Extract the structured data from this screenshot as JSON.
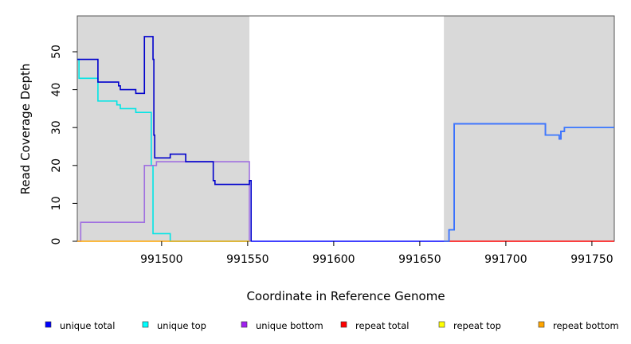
{
  "chart_data": {
    "type": "line",
    "step": true,
    "title": "",
    "xlabel": "Coordinate in Reference Genome",
    "ylabel": "Read Coverage Depth",
    "xlim": [
      991451,
      991763
    ],
    "ylim": [
      0,
      57
    ],
    "x_ticks": [
      991500,
      991550,
      991600,
      991650,
      991700,
      991750
    ],
    "x_tick_labels": [
      "991500",
      "991550",
      "991600",
      "991650",
      "991700",
      "991750"
    ],
    "y_ticks": [
      0,
      10,
      20,
      30,
      40,
      50
    ],
    "y_tick_labels": [
      "0",
      "10",
      "20",
      "30",
      "40",
      "50"
    ],
    "shaded_regions": [
      [
        991451,
        991551
      ],
      [
        991664,
        991763
      ]
    ],
    "shade_color": "#d9d9d9",
    "legend_position": "bottom",
    "legend": [
      {
        "label": "unique total",
        "color": "#0000ff"
      },
      {
        "label": "unique top",
        "color": "#00ffff"
      },
      {
        "label": "unique bottom",
        "color": "#a020f0"
      },
      {
        "label": "repeat total",
        "color": "#ff0000"
      },
      {
        "label": "repeat top",
        "color": "#ffff00"
      },
      {
        "label": "repeat bottom",
        "color": "#ffa500"
      }
    ],
    "series": [
      {
        "name": "unique top",
        "color": "#00e5e5",
        "x": [
          991451,
          991452,
          991463,
          991474,
          991476,
          991485,
          991494,
          991495,
          991505,
          991551
        ],
        "y": [
          48,
          43,
          37,
          36,
          35,
          34,
          20,
          2,
          0,
          0
        ]
      },
      {
        "name": "unique bottom",
        "color": "#a070e0",
        "x": [
          991451,
          991452,
          991453,
          991490,
          991497,
          991504,
          991551
        ],
        "y": [
          0,
          0,
          5,
          20,
          21,
          21,
          0
        ]
      },
      {
        "name": "repeat bottom",
        "color": "#ffa500",
        "x": [
          991451,
          991551
        ],
        "y": [
          0,
          0
        ]
      },
      {
        "name": "repeat total",
        "color": "#ff0000",
        "x": [
          991664,
          991763
        ],
        "y": [
          0,
          0
        ]
      },
      {
        "name": "unique total",
        "color": "#0000cc",
        "x": [
          991451,
          991463,
          991475,
          991476,
          991485,
          991490,
          991495,
          991495.5,
          991496,
          991505,
          991514,
          991530,
          991531,
          991551,
          991552
        ],
        "y": [
          48,
          42,
          41,
          40,
          39,
          54,
          48,
          28,
          22,
          23,
          21,
          16,
          15,
          16,
          0
        ]
      },
      {
        "name": "unique total",
        "color": "#0000ff",
        "x": [
          991552,
          991664,
          991667,
          991670,
          991723,
          991731,
          991732,
          991734,
          991763
        ],
        "y": [
          0,
          0,
          3,
          31,
          28,
          27,
          29,
          30,
          30
        ]
      },
      {
        "name": "unique total",
        "color": "#3a7bff",
        "x": [
          991664,
          991667,
          991670,
          991723,
          991731,
          991732,
          991734,
          991763
        ],
        "y": [
          0,
          3,
          31,
          28,
          27,
          29,
          30,
          30
        ]
      }
    ]
  }
}
